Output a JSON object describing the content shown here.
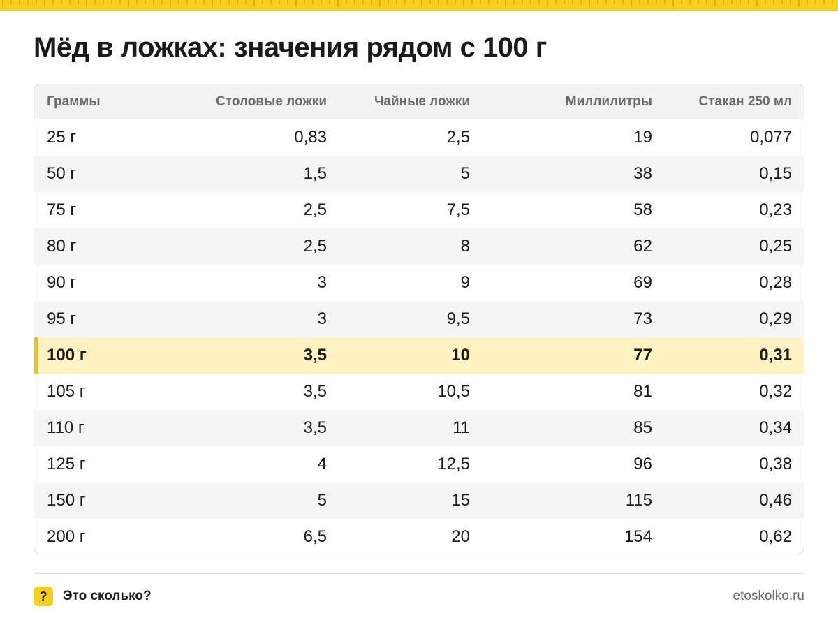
{
  "title": "Мёд в ложках: значения рядом с 100 г",
  "colors": {
    "accent": "#f7cf1d",
    "highlight_row": "#fff3c2",
    "highlight_bar": "#f2c40f"
  },
  "table": {
    "headers": [
      "Граммы",
      "Столовые ложки",
      "Чайные ложки",
      "Миллилитры",
      "Стакан 250 мл"
    ],
    "rows": [
      [
        "25 г",
        "0,83",
        "2,5",
        "19",
        "0,077"
      ],
      [
        "50 г",
        "1,5",
        "5",
        "38",
        "0,15"
      ],
      [
        "75 г",
        "2,5",
        "7,5",
        "58",
        "0,23"
      ],
      [
        "80 г",
        "2,5",
        "8",
        "62",
        "0,25"
      ],
      [
        "90 г",
        "3",
        "9",
        "69",
        "0,28"
      ],
      [
        "95 г",
        "3",
        "9,5",
        "73",
        "0,29"
      ],
      [
        "100 г",
        "3,5",
        "10",
        "77",
        "0,31"
      ],
      [
        "105 г",
        "3,5",
        "10,5",
        "81",
        "0,32"
      ],
      [
        "110 г",
        "3,5",
        "11",
        "85",
        "0,34"
      ],
      [
        "125 г",
        "4",
        "12,5",
        "96",
        "0,38"
      ],
      [
        "150 г",
        "5",
        "15",
        "115",
        "0,46"
      ],
      [
        "200 г",
        "6,5",
        "20",
        "154",
        "0,62"
      ]
    ],
    "highlight_row_index": 6
  },
  "footer": {
    "brand_icon": "?",
    "brand_name": "Это сколько?",
    "site": "etoskolko.ru"
  }
}
